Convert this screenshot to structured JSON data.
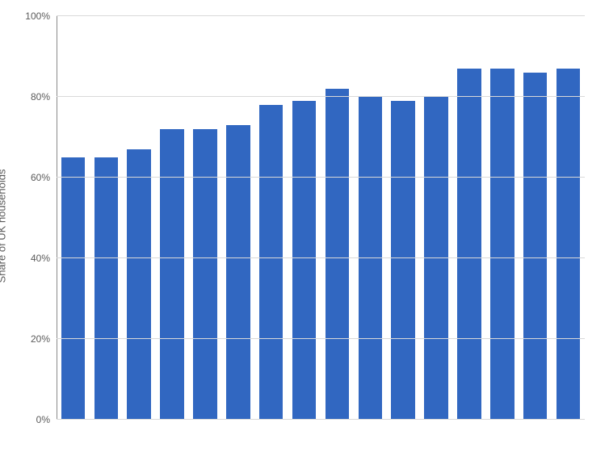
{
  "chart": {
    "type": "bar",
    "ylabel": "Share of UK households",
    "ylabel_fontsize": 13,
    "ylabel_color": "#5a5a5a",
    "ylim": [
      0,
      100
    ],
    "yticks": [
      0,
      20,
      40,
      60,
      80,
      100
    ],
    "ytick_labels": [
      "0%",
      "20%",
      "40%",
      "60%",
      "80%",
      "100%"
    ],
    "ytick_fontsize": 12,
    "ytick_color": "#5a5a5a",
    "grid_color": "#d9d9d9",
    "axis_color": "#8a8a8a",
    "background_color": "#ffffff",
    "bar_color": "#3167c1",
    "bar_width_ratio": 0.72,
    "values": [
      65,
      65,
      67,
      72,
      72,
      73,
      78,
      79,
      82,
      80,
      79,
      80,
      87,
      87,
      86,
      87
    ]
  }
}
